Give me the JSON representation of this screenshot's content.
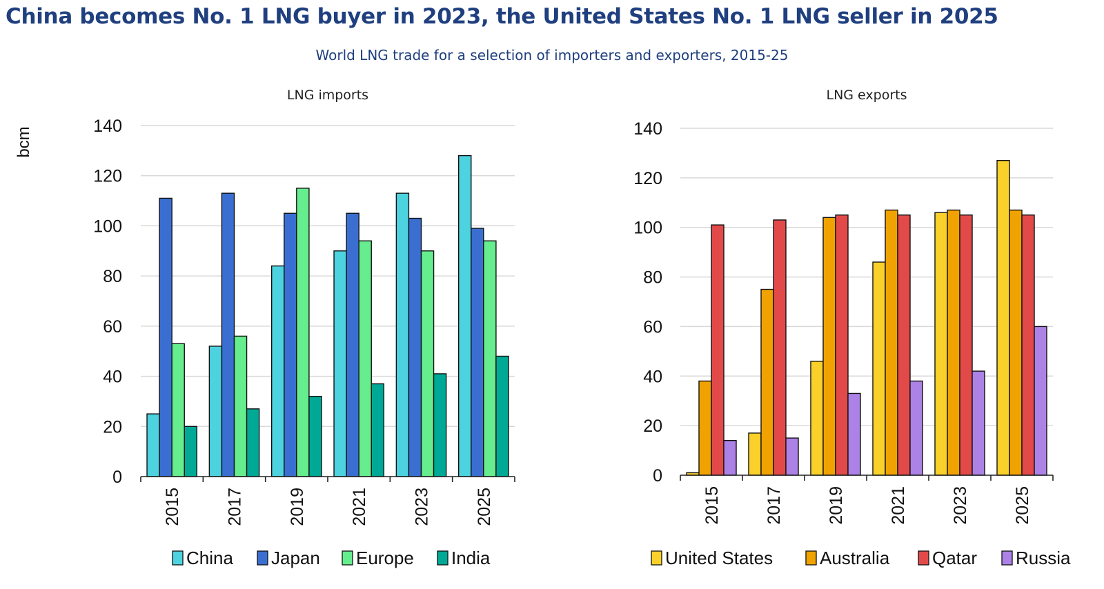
{
  "header": {
    "title": "China becomes No. 1 LNG buyer in 2023, the United States No. 1 LNG seller in 2025",
    "subtitle": "World LNG trade for a selection of importers and exporters, 2015-25"
  },
  "chart_data": [
    {
      "type": "bar",
      "title": "LNG imports",
      "ylabel": "bcm",
      "xlabel": "",
      "ylim": [
        0,
        140
      ],
      "yticks": [
        0,
        20,
        40,
        60,
        80,
        100,
        120,
        140
      ],
      "grid": true,
      "legend": "bottom",
      "categories": [
        "2015",
        "2017",
        "2019",
        "2021",
        "2023",
        "2025"
      ],
      "series": [
        {
          "name": "China",
          "color": "#4dd3df",
          "values": [
            25,
            52,
            84,
            90,
            113,
            128
          ]
        },
        {
          "name": "Japan",
          "color": "#3a6fd1",
          "values": [
            111,
            113,
            105,
            105,
            103,
            99
          ]
        },
        {
          "name": "Europe",
          "color": "#66ee8e",
          "values": [
            53,
            56,
            115,
            94,
            90,
            94
          ]
        },
        {
          "name": "India",
          "color": "#00a896",
          "values": [
            20,
            27,
            32,
            37,
            41,
            48
          ]
        }
      ]
    },
    {
      "type": "bar",
      "title": "LNG exports",
      "ylabel": "",
      "xlabel": "",
      "ylim": [
        0,
        140
      ],
      "yticks": [
        0,
        20,
        40,
        60,
        80,
        100,
        120,
        140
      ],
      "grid": true,
      "legend": "bottom",
      "categories": [
        "2015",
        "2017",
        "2019",
        "2021",
        "2023",
        "2025"
      ],
      "series": [
        {
          "name": "United States",
          "color": "#fad12a",
          "values": [
            1,
            17,
            46,
            86,
            106,
            127
          ]
        },
        {
          "name": "Australia",
          "color": "#f0a300",
          "values": [
            38,
            75,
            104,
            107,
            107,
            107
          ]
        },
        {
          "name": "Qatar",
          "color": "#e24a4a",
          "values": [
            101,
            103,
            105,
            105,
            105,
            105
          ]
        },
        {
          "name": "Russia",
          "color": "#ad82e6",
          "values": [
            14,
            15,
            33,
            38,
            42,
            60
          ]
        }
      ]
    }
  ]
}
